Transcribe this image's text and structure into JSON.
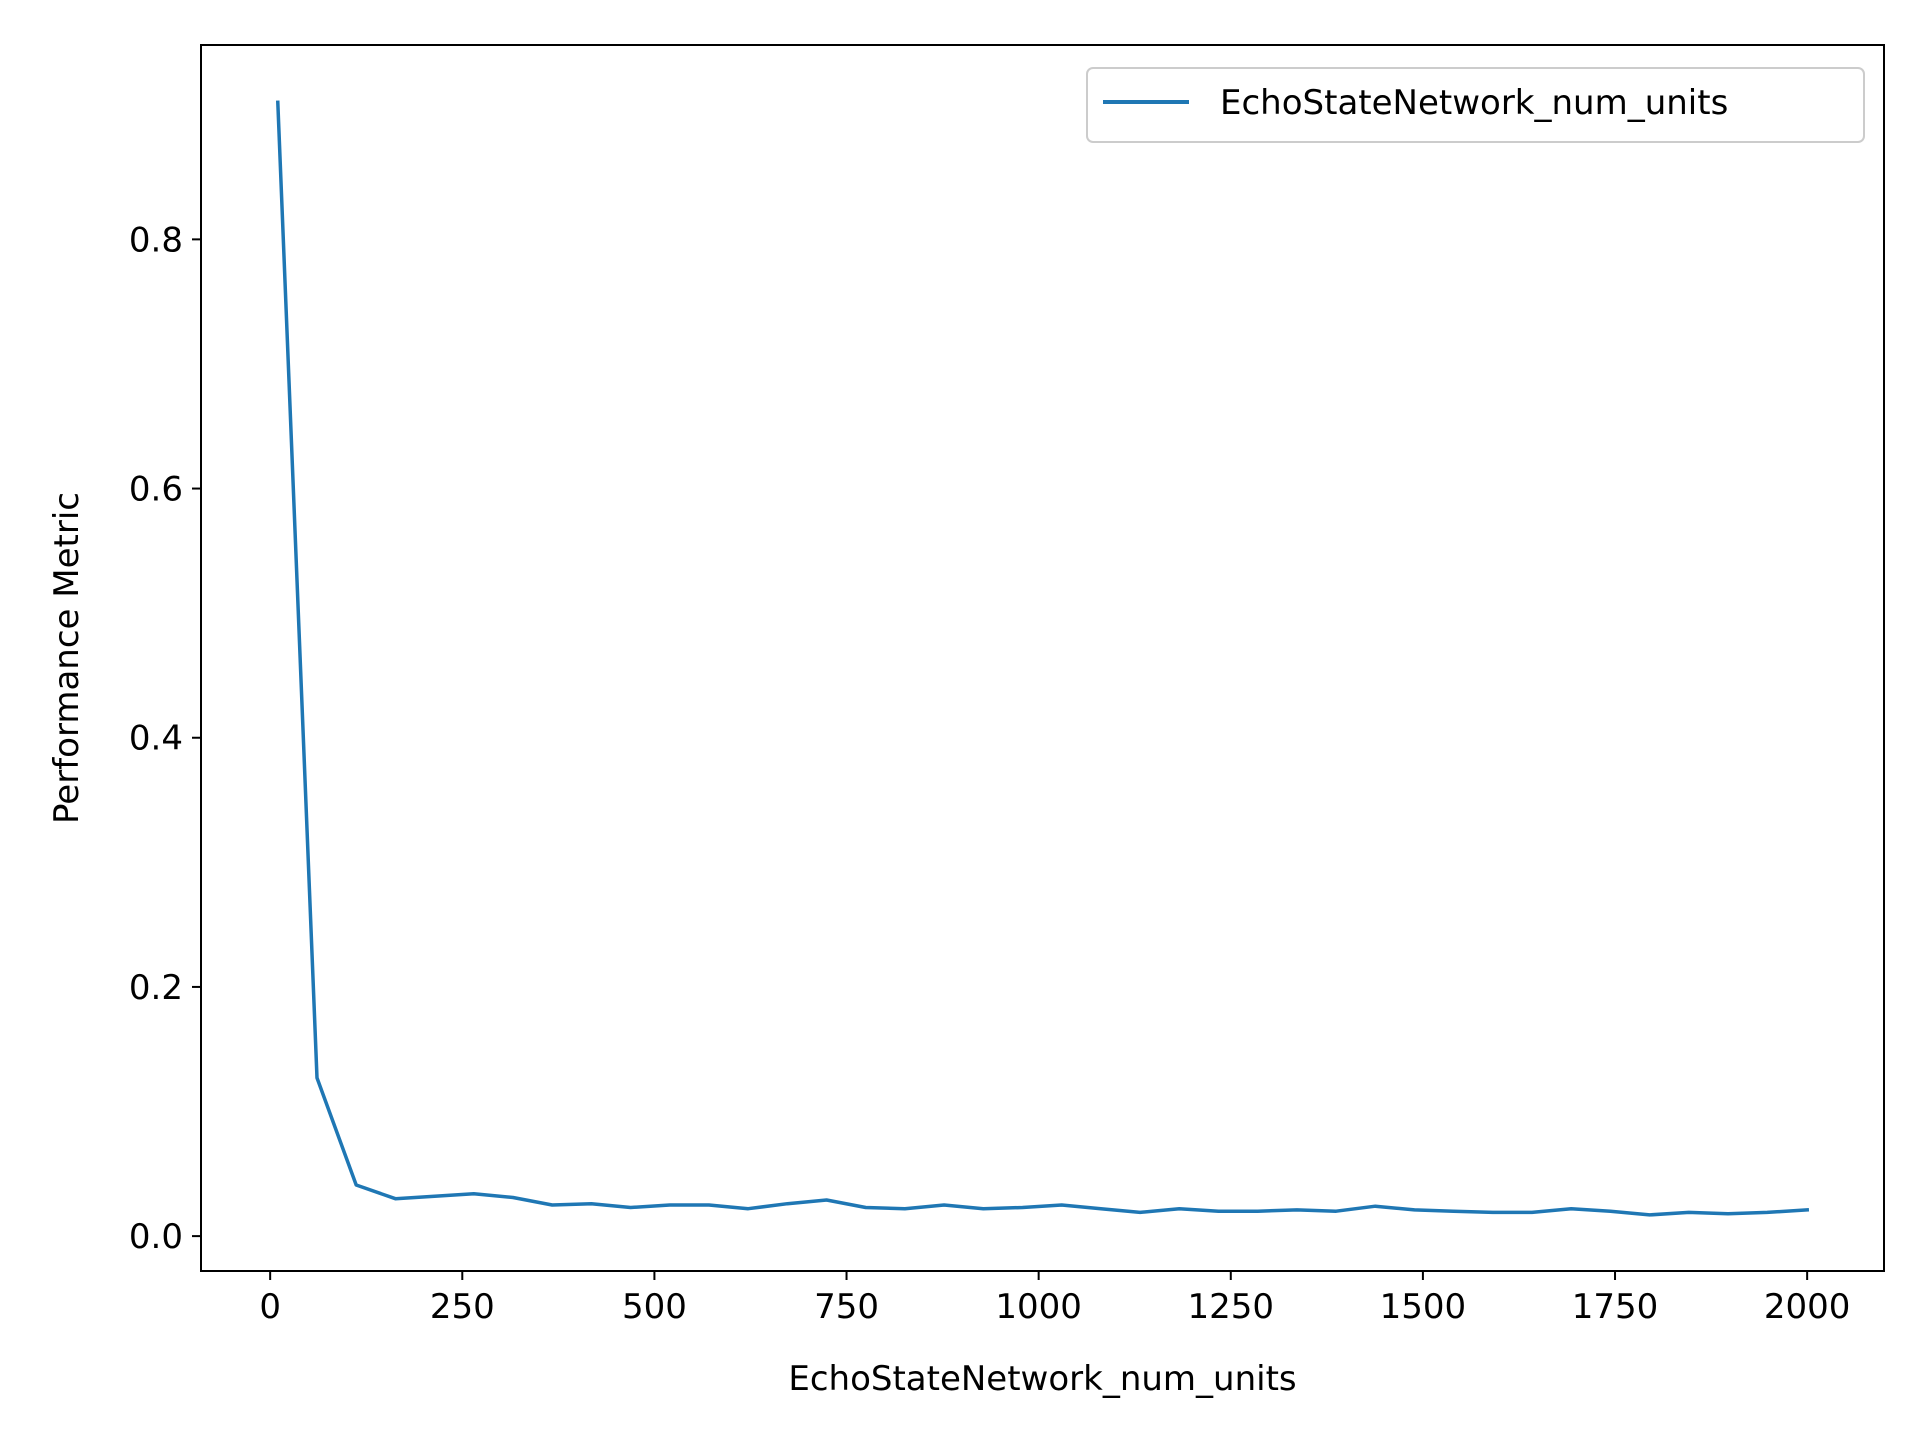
{
  "chart_data": {
    "type": "line",
    "title": "",
    "xlabel": "EchoStateNetwork_num_units",
    "ylabel": "Performance Metric",
    "xlim": [
      -90,
      2100
    ],
    "ylim": [
      -0.028,
      0.956
    ],
    "xticks": [
      0,
      250,
      500,
      750,
      1000,
      1250,
      1500,
      1750,
      2000
    ],
    "xtick_labels": [
      "0",
      "250",
      "500",
      "750",
      "1000",
      "1250",
      "1500",
      "1750",
      "2000"
    ],
    "yticks": [
      0.0,
      0.2,
      0.4,
      0.6,
      0.8
    ],
    "ytick_labels": [
      "0.0",
      "0.2",
      "0.4",
      "0.6",
      "0.8"
    ],
    "grid": false,
    "legend_position": "top-right",
    "series": [
      {
        "name": "EchoStateNetwork_num_units",
        "color": "#1f77b4",
        "x": [
          10,
          61,
          112,
          163,
          214,
          265,
          316,
          367,
          418,
          469,
          520,
          571,
          622,
          673,
          724,
          775,
          826,
          877,
          928,
          979,
          1030,
          1081,
          1132,
          1183,
          1234,
          1285,
          1336,
          1387,
          1438,
          1489,
          1540,
          1591,
          1642,
          1693,
          1744,
          1795,
          1846,
          1897,
          1948,
          2000
        ],
        "y": [
          0.91,
          0.127,
          0.041,
          0.03,
          0.032,
          0.034,
          0.031,
          0.025,
          0.026,
          0.023,
          0.025,
          0.025,
          0.022,
          0.026,
          0.029,
          0.023,
          0.022,
          0.025,
          0.022,
          0.023,
          0.025,
          0.022,
          0.019,
          0.022,
          0.02,
          0.02,
          0.021,
          0.02,
          0.024,
          0.021,
          0.02,
          0.019,
          0.019,
          0.022,
          0.02,
          0.017,
          0.019,
          0.018,
          0.019,
          0.021
        ]
      }
    ]
  }
}
